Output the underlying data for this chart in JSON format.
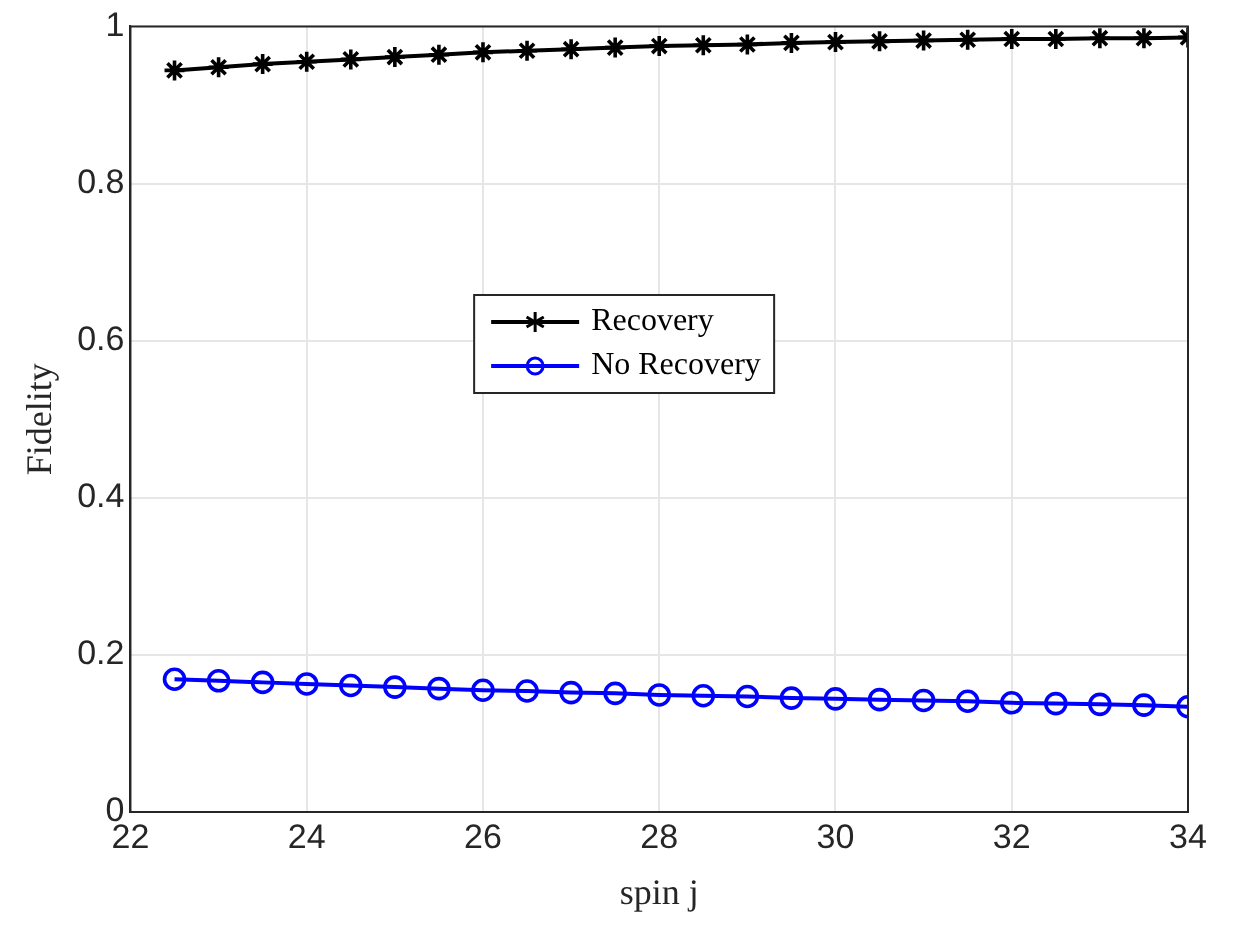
{
  "chart_data": {
    "type": "line",
    "xlabel": "spin j",
    "ylabel": "Fidelity",
    "x": [
      22.5,
      23,
      23.5,
      24,
      24.5,
      25,
      25.5,
      26,
      26.5,
      27,
      27.5,
      28,
      28.5,
      29,
      29.5,
      30,
      30.5,
      31,
      31.5,
      32,
      32.5,
      33,
      33.5,
      34
    ],
    "series": [
      {
        "name": "Recovery",
        "color": "#000000",
        "marker": "cross",
        "values": [
          0.944,
          0.948,
          0.952,
          0.955,
          0.958,
          0.961,
          0.964,
          0.967,
          0.969,
          0.971,
          0.973,
          0.975,
          0.976,
          0.977,
          0.979,
          0.98,
          0.981,
          0.982,
          0.983,
          0.984,
          0.984,
          0.985,
          0.985,
          0.986
        ]
      },
      {
        "name": "No Recovery",
        "color": "#0000ff",
        "marker": "circle",
        "values": [
          0.169,
          0.167,
          0.165,
          0.163,
          0.161,
          0.159,
          0.157,
          0.155,
          0.154,
          0.152,
          0.151,
          0.149,
          0.148,
          0.147,
          0.145,
          0.144,
          0.143,
          0.142,
          0.141,
          0.139,
          0.138,
          0.137,
          0.136,
          0.134
        ]
      }
    ],
    "xlim": [
      22,
      34
    ],
    "xticks": [
      22,
      24,
      26,
      28,
      30,
      32,
      34
    ],
    "ylim": [
      0,
      1
    ],
    "yticks": [
      0,
      0.2,
      0.4,
      0.6,
      0.8,
      1
    ],
    "grid": true,
    "legend": "center",
    "line_style": "solid"
  }
}
